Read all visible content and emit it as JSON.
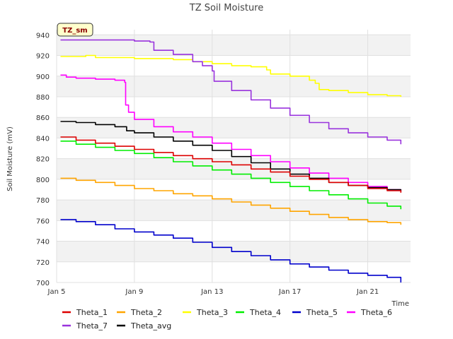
{
  "chart_data": {
    "type": "line",
    "title": "TZ Soil Moisture",
    "xlabel": "Time",
    "ylabel": "Soil Moisture (mV)",
    "badge": "TZ_sm",
    "xlim": [
      5,
      23.2
    ],
    "ylim": [
      700,
      945
    ],
    "x_ticks": [
      {
        "value": 5,
        "label": "Jan 5"
      },
      {
        "value": 9,
        "label": "Jan 9"
      },
      {
        "value": 13,
        "label": "Jan 13"
      },
      {
        "value": 17,
        "label": "Jan 17"
      },
      {
        "value": 21,
        "label": "Jan 21"
      }
    ],
    "y_ticks": [
      700,
      720,
      740,
      760,
      780,
      800,
      820,
      840,
      860,
      880,
      900,
      920,
      940
    ],
    "grid": true,
    "legend_position": "bottom",
    "series": [
      {
        "name": "Theta_1",
        "color": "#dd0000",
        "x": [
          5.2,
          6.0,
          7.0,
          8.0,
          9.0,
          10.0,
          11.0,
          12.0,
          13.0,
          14.0,
          15.0,
          16.0,
          17.0,
          18.0,
          19.0,
          20.0,
          21.0,
          22.0,
          22.7
        ],
        "y": [
          841,
          838,
          835,
          832,
          829,
          826,
          823,
          820,
          817,
          814,
          810,
          807,
          803,
          800,
          797,
          794,
          791,
          789,
          787
        ]
      },
      {
        "name": "Theta_2",
        "color": "#ffa500",
        "x": [
          5.2,
          6.0,
          7.0,
          8.0,
          9.0,
          10.0,
          11.0,
          12.0,
          13.0,
          14.0,
          15.0,
          16.0,
          17.0,
          18.0,
          19.0,
          20.0,
          21.0,
          22.0,
          22.7
        ],
        "y": [
          801,
          799,
          797,
          794,
          791,
          789,
          786,
          784,
          781,
          778,
          775,
          772,
          769,
          766,
          763,
          761,
          759,
          758,
          756
        ]
      },
      {
        "name": "Theta_3",
        "color": "#ffff00",
        "x": [
          5.2,
          6.0,
          6.5,
          7.0,
          8.0,
          9.0,
          10.0,
          11.0,
          12.0,
          13.0,
          14.0,
          15.0,
          15.8,
          16.0,
          17.0,
          18.0,
          18.3,
          18.5,
          19.0,
          20.0,
          21.0,
          22.0,
          22.7
        ],
        "y": [
          919,
          919,
          920,
          918,
          918,
          917,
          917,
          916,
          914,
          912,
          910,
          909,
          906,
          902,
          900,
          896,
          893,
          887,
          886,
          884,
          882,
          881,
          880
        ]
      },
      {
        "name": "Theta_4",
        "color": "#00ee00",
        "x": [
          5.2,
          6.0,
          7.0,
          8.0,
          9.0,
          10.0,
          11.0,
          12.0,
          13.0,
          14.0,
          15.0,
          16.0,
          17.0,
          18.0,
          19.0,
          20.0,
          21.0,
          22.0,
          22.7
        ],
        "y": [
          837,
          834,
          831,
          828,
          825,
          821,
          817,
          813,
          809,
          805,
          801,
          797,
          793,
          789,
          785,
          781,
          777,
          774,
          771
        ]
      },
      {
        "name": "Theta_5",
        "color": "#0000cc",
        "x": [
          5.2,
          6.0,
          7.0,
          8.0,
          9.0,
          10.0,
          11.0,
          12.0,
          13.0,
          14.0,
          15.0,
          16.0,
          17.0,
          18.0,
          19.0,
          20.0,
          21.0,
          22.0,
          22.7
        ],
        "y": [
          761,
          759,
          756,
          752,
          749,
          746,
          743,
          739,
          734,
          730,
          726,
          722,
          718,
          715,
          712,
          709,
          707,
          705,
          700
        ]
      },
      {
        "name": "Theta_6",
        "color": "#ff00ff",
        "x": [
          5.2,
          5.5,
          6.0,
          7.0,
          8.0,
          8.5,
          8.55,
          8.7,
          9.0,
          10.0,
          11.0,
          12.0,
          13.0,
          14.0,
          15.0,
          16.0,
          17.0,
          18.0,
          19.0,
          20.0,
          21.0,
          22.0,
          22.7
        ],
        "y": [
          901,
          899,
          898,
          897,
          896,
          894,
          872,
          865,
          858,
          851,
          846,
          841,
          835,
          829,
          823,
          817,
          811,
          806,
          801,
          797,
          793,
          790,
          788
        ]
      },
      {
        "name": "Theta_7",
        "color": "#9933dd",
        "x": [
          5.2,
          6.0,
          7.0,
          8.0,
          9.0,
          9.8,
          10.0,
          11.0,
          12.0,
          12.5,
          13.0,
          13.1,
          14.0,
          15.0,
          16.0,
          17.0,
          18.0,
          19.0,
          20.0,
          21.0,
          22.0,
          22.7
        ],
        "y": [
          935,
          935,
          935,
          935,
          934,
          933,
          925,
          921,
          914,
          910,
          905,
          895,
          886,
          877,
          869,
          862,
          855,
          849,
          845,
          841,
          838,
          834
        ]
      },
      {
        "name": "Theta_avg",
        "color": "#000000",
        "x": [
          5.2,
          6.0,
          7.0,
          8.0,
          8.5,
          8.6,
          9.0,
          10.0,
          11.0,
          12.0,
          13.0,
          14.0,
          15.0,
          16.0,
          17.0,
          18.0,
          19.0,
          20.0,
          21.0,
          22.0,
          22.7
        ],
        "y": [
          856,
          855,
          853,
          851,
          851,
          847,
          845,
          841,
          837,
          833,
          828,
          822,
          816,
          810,
          805,
          801,
          797,
          794,
          792,
          790,
          788
        ]
      }
    ]
  }
}
